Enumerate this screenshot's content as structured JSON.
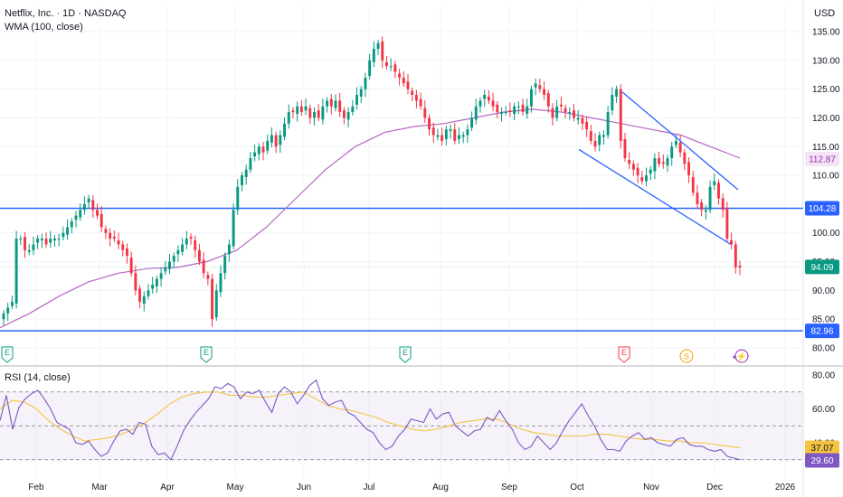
{
  "header": {
    "symbol_title": "Netflix, Inc. · 1D · NASDAQ",
    "currency": "USD",
    "wma_label": "WMA (100, close)",
    "rsi_label": "RSI (14, close)"
  },
  "colors": {
    "up": "#089981",
    "down": "#f23645",
    "wma": "#b667c3",
    "rsi": "#7e57c2",
    "rsi_ma": "#f5c342",
    "level_line": "#2962ff",
    "channel": "#2962ff",
    "last_price": "#089981"
  },
  "chart_data": [
    {
      "type": "candlestick",
      "title": "Netflix, Inc. · 1D · NASDAQ",
      "currency": "USD",
      "x_ticks": [
        "Feb",
        "Mar",
        "Apr",
        "May",
        "Jun",
        "Jul",
        "Aug",
        "Sep",
        "Oct",
        "Nov",
        "Dec",
        "2026"
      ],
      "y_ticks": [
        "135.00",
        "130.00",
        "125.00",
        "120.00",
        "115.00",
        "110.00",
        "105.00",
        "100.00",
        "95.00",
        "90.00",
        "85.00",
        "80.00"
      ],
      "ylim": [
        80,
        135
      ],
      "overlays": [
        {
          "name": "WMA (100, close)",
          "value_label": "112.87"
        }
      ],
      "horizontal_lines": [
        104.28,
        82.96
      ],
      "price_labels": [
        "112.87",
        "104.28",
        "94.09",
        "82.96"
      ],
      "last_price": 94.09,
      "earnings_markers": [
        "E",
        "E",
        "E",
        "E"
      ],
      "split_marker": "S",
      "flash_marker": "⚡",
      "approximate_closes": [
        86,
        87,
        88,
        99,
        99,
        97,
        97,
        98,
        99,
        99,
        98,
        99,
        99,
        99,
        100,
        101,
        102,
        103,
        104,
        105,
        106,
        104,
        103,
        101,
        100,
        99,
        99,
        98,
        97,
        96,
        93,
        90,
        88,
        89,
        90,
        91,
        92,
        93,
        94,
        95,
        96,
        97,
        98,
        99,
        99,
        97,
        95,
        93,
        92,
        85,
        90,
        93,
        96,
        98,
        104,
        108,
        110,
        111,
        113,
        114,
        115,
        114,
        116,
        117,
        115,
        117,
        119,
        121,
        121,
        122,
        121,
        122,
        120,
        121,
        120,
        122,
        123,
        122,
        123,
        121,
        120,
        121,
        122,
        124,
        125,
        127,
        130,
        132,
        133,
        130,
        129,
        129,
        128,
        127,
        126,
        125,
        124,
        123,
        122,
        120,
        118,
        117,
        117,
        116,
        118,
        118,
        116,
        117,
        117,
        118,
        120,
        122,
        123,
        124,
        123,
        122,
        121,
        121,
        121,
        121,
        122,
        122,
        121,
        122,
        125,
        126,
        125,
        124,
        122,
        120,
        122,
        122,
        121,
        121,
        120,
        120,
        119,
        118,
        116,
        115,
        117,
        117,
        121,
        124,
        125,
        116,
        113,
        112,
        111,
        110,
        109,
        110,
        111,
        113,
        112,
        112,
        113,
        115,
        116,
        114,
        112,
        110,
        107,
        105,
        104,
        104,
        108,
        109,
        106,
        104,
        99,
        98,
        94,
        94
      ],
      "series": [
        {
          "name": "WMA (100, close)",
          "approximate_values": [
            83.5,
            86,
            89,
            91.5,
            93,
            93.8,
            94,
            95,
            97,
            101,
            106,
            111,
            115,
            117.5,
            118.5,
            119,
            120,
            121,
            121.5,
            121,
            120,
            119,
            118,
            117,
            115,
            113
          ]
        }
      ]
    },
    {
      "type": "line",
      "title": "RSI (14, close)",
      "y_ticks": [
        "80.00",
        "60.00",
        "40.00"
      ],
      "ylim": [
        25,
        85
      ],
      "value_labels": [
        "37.07",
        "29.60"
      ],
      "series": [
        {
          "name": "RSI (14, close)",
          "approximate_values": [
            53,
            68,
            48,
            61,
            66,
            69,
            71,
            66,
            60,
            52,
            50,
            48,
            40,
            39,
            41,
            36,
            32,
            34,
            41,
            47,
            48,
            45,
            52,
            51,
            38,
            33,
            34,
            30,
            38,
            47,
            53,
            58,
            62,
            66,
            73,
            72,
            75,
            73,
            66,
            70,
            69,
            71,
            64,
            58,
            69,
            73,
            70,
            63,
            68,
            74,
            77,
            66,
            62,
            64,
            65,
            58,
            56,
            52,
            48,
            46,
            40,
            36,
            38,
            44,
            48,
            54,
            53,
            52,
            60,
            54,
            57,
            58,
            50,
            47,
            44,
            47,
            48,
            55,
            53,
            59,
            53,
            48,
            40,
            36,
            38,
            44,
            40,
            36,
            40,
            47,
            53,
            58,
            63,
            56,
            50,
            42,
            36,
            36,
            35,
            41,
            44,
            46,
            42,
            43,
            40,
            39,
            38,
            42,
            43,
            39,
            38,
            38,
            36,
            35,
            36,
            32,
            31,
            30
          ]
        },
        {
          "name": "RSI MA",
          "approximate_values": [
            60,
            65,
            64,
            60,
            53,
            48,
            44,
            41,
            42,
            43,
            45,
            48,
            52,
            57,
            63,
            67,
            69,
            70,
            70,
            68,
            68,
            67,
            67,
            68,
            69,
            70,
            66,
            62,
            60,
            59,
            57,
            55,
            52,
            50,
            48,
            47,
            48,
            50,
            52,
            53,
            54,
            54,
            51,
            48,
            46,
            45,
            44,
            44,
            44,
            45,
            45,
            44,
            43,
            42,
            42,
            41,
            41,
            40,
            40,
            39,
            38,
            37
          ]
        }
      ]
    }
  ]
}
